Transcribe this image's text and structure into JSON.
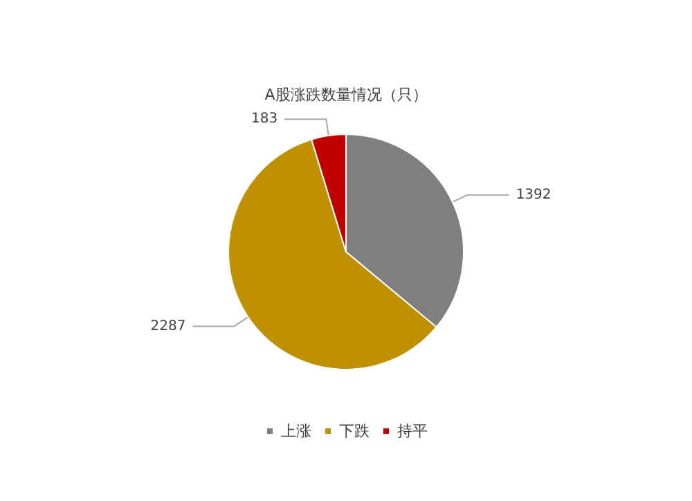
{
  "chart_data": {
    "type": "pie",
    "title": "A股涨跌数量情况（只）",
    "categories": [
      "上涨",
      "下跌",
      "持平"
    ],
    "values": [
      1392,
      2287,
      183
    ],
    "colors": [
      "#7f7f7f",
      "#bf9000",
      "#c00000"
    ],
    "data_labels": true,
    "legend": "bottom"
  }
}
